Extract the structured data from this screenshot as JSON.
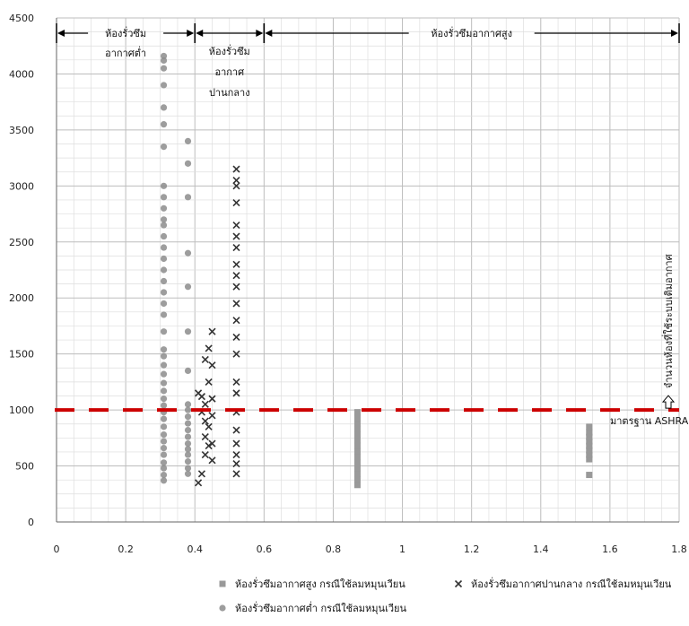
{
  "chart_data": {
    "type": "scatter",
    "title": "",
    "xlabel": "",
    "ylabel": "",
    "xlim": [
      0,
      1.8
    ],
    "ylim": [
      0,
      4500
    ],
    "x_ticks": [
      "0",
      "0.2",
      "0.4",
      "0.6",
      "0.8",
      "1",
      "1.2",
      "1.4",
      "1.6",
      "1.8"
    ],
    "y_ticks": [
      "0",
      "500",
      "1000",
      "1500",
      "2000",
      "2500",
      "3000",
      "3500",
      "4000",
      "4500"
    ],
    "grid": true,
    "legend_position": "bottom",
    "threshold": {
      "y": 1000,
      "color": "#cc0000",
      "label": "มาตรฐาน ASHRAE",
      "vertical_note": "จำนวนห้องที่ใช้ระบบเติมอากาศ"
    },
    "regions": [
      {
        "label_lines": [
          "ห้องรั่วซึม",
          "อากาศต่ำ"
        ],
        "x_from": 0,
        "x_to": 0.4
      },
      {
        "label_lines": [
          "ห้องรั่วซึม",
          "อากาศ",
          "ปานกลาง"
        ],
        "x_from": 0.4,
        "x_to": 0.6
      },
      {
        "label_lines": [
          "ห้องรั่วซึมอากาศสูง"
        ],
        "x_from": 0.6,
        "x_to": 1.8
      }
    ],
    "series": [
      {
        "name": "ห้องรั่วซึมอากาศสูง กรณีใช้ลมหมุนเวียน",
        "marker": "square",
        "color": "#999999",
        "x": [
          0.87,
          0.87,
          0.87,
          0.87,
          0.87,
          0.87,
          0.87,
          0.87,
          0.87,
          0.87,
          0.87,
          0.87,
          0.87,
          0.87,
          1.54,
          1.54,
          1.54,
          1.54,
          1.54,
          1.54,
          1.54,
          1.54,
          1.54
        ],
        "y": [
          330,
          380,
          430,
          480,
          530,
          580,
          630,
          680,
          730,
          780,
          830,
          880,
          930,
          980,
          420,
          560,
          600,
          640,
          680,
          720,
          760,
          800,
          850
        ]
      },
      {
        "name": "ห้องรั่วซึมอากาศปานกลาง กรณีใช้ลมหมุนเวียน",
        "marker": "x",
        "color": "#333333",
        "x": [
          0.41,
          0.41,
          0.42,
          0.42,
          0.42,
          0.43,
          0.43,
          0.43,
          0.43,
          0.43,
          0.44,
          0.44,
          0.44,
          0.44,
          0.45,
          0.45,
          0.45,
          0.45,
          0.45,
          0.45,
          0.52,
          0.52,
          0.52,
          0.52,
          0.52,
          0.52,
          0.52,
          0.52,
          0.52,
          0.52,
          0.52,
          0.52,
          0.52,
          0.52,
          0.52,
          0.52,
          0.52,
          0.52,
          0.52,
          0.52,
          0.52,
          0.52
        ],
        "y": [
          350,
          1150,
          430,
          980,
          1120,
          600,
          760,
          900,
          1050,
          1450,
          680,
          850,
          1250,
          1550,
          550,
          700,
          950,
          1100,
          1400,
          1700,
          430,
          520,
          600,
          700,
          820,
          980,
          1150,
          1250,
          1500,
          1650,
          1800,
          1950,
          2100,
          2200,
          2300,
          2450,
          2550,
          2650,
          2850,
          3000,
          3050,
          3150
        ]
      },
      {
        "name": "ห้องรั่วซึมอากาศต่ำ กรณีใช้ลมหมุนเวียน",
        "marker": "circle",
        "color": "#8c8c8c",
        "x": [
          0.31,
          0.31,
          0.31,
          0.31,
          0.31,
          0.31,
          0.31,
          0.31,
          0.31,
          0.31,
          0.31,
          0.31,
          0.31,
          0.31,
          0.31,
          0.31,
          0.31,
          0.31,
          0.31,
          0.31,
          0.31,
          0.31,
          0.31,
          0.31,
          0.31,
          0.31,
          0.31,
          0.31,
          0.31,
          0.31,
          0.31,
          0.31,
          0.31,
          0.31,
          0.31,
          0.31,
          0.31,
          0.31,
          0.31,
          0.31,
          0.38,
          0.38,
          0.38,
          0.38,
          0.38,
          0.38,
          0.38,
          0.38,
          0.38,
          0.38,
          0.38,
          0.38,
          0.38,
          0.38,
          0.38,
          0.38,
          0.38,
          0.38,
          0.38
        ],
        "y": [
          370,
          420,
          480,
          530,
          600,
          660,
          720,
          780,
          850,
          920,
          980,
          1040,
          1100,
          1170,
          1240,
          1320,
          1400,
          1480,
          1540,
          1700,
          1850,
          1950,
          2050,
          2150,
          2250,
          2350,
          2450,
          2550,
          2650,
          2700,
          2800,
          2900,
          3000,
          3350,
          3550,
          3700,
          3900,
          4050,
          4120,
          4160,
          430,
          480,
          540,
          600,
          650,
          700,
          760,
          820,
          880,
          940,
          1000,
          1050,
          1350,
          1700,
          2100,
          2400,
          2900,
          3200,
          3400
        ]
      }
    ]
  }
}
